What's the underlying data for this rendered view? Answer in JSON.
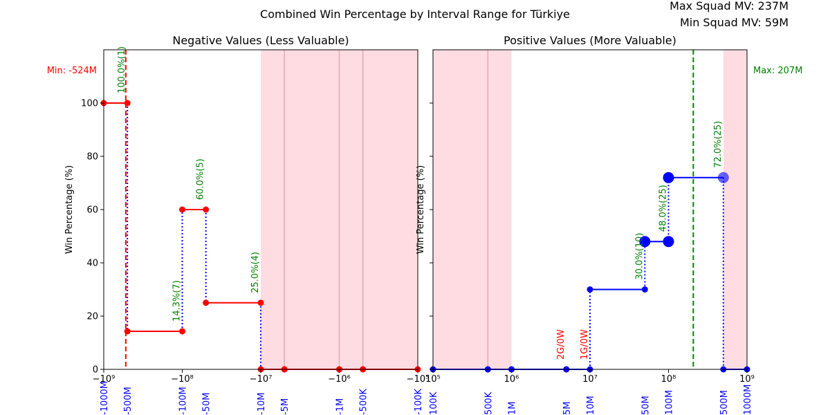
{
  "figure": {
    "title": "Combined Win Percentage by Interval Range for Türkiye",
    "max_squad_mv": "Max Squad MV: 237M",
    "min_squad_mv": "Min Squad MV: 59M"
  },
  "colors": {
    "negative_series": "#ff0000",
    "positive_series": "#0000ff",
    "connector": "#0000ff",
    "label_text": "#008000",
    "zero_win_text": "#ff0000",
    "shade": "#ffc0cb",
    "max_line": "#008000",
    "min_line": "#ff0000"
  },
  "chart_data": [
    {
      "type": "line",
      "title": "Negative Values (Less Valuable)",
      "xscale": "symlog",
      "xlim": [
        -1000000000,
        -100000
      ],
      "ylim": [
        0,
        120
      ],
      "ylabel": "Win Percentage (%)",
      "grid": false,
      "x_ticks": [
        {
          "value": -1000000000,
          "label": "−10⁹"
        },
        {
          "value": -100000000,
          "label": "−10⁸"
        },
        {
          "value": -10000000,
          "label": "−10⁷"
        },
        {
          "value": -1000000,
          "label": "−10⁶"
        },
        {
          "value": -100000,
          "label": "−10⁵"
        }
      ],
      "y_ticks": [
        0,
        20,
        40,
        60,
        80,
        100
      ],
      "interval_labels": [
        {
          "value": -1000000000,
          "label": "-1000M"
        },
        {
          "value": -500000000,
          "label": "-500M"
        },
        {
          "value": -100000000,
          "label": "-100M"
        },
        {
          "value": -50000000,
          "label": "-50M"
        },
        {
          "value": -10000000,
          "label": "-10M"
        },
        {
          "value": -5000000,
          "label": "-5M"
        },
        {
          "value": -1000000,
          "label": "-1M"
        },
        {
          "value": -500000,
          "label": "-500K"
        },
        {
          "value": -100000,
          "label": "-100K"
        }
      ],
      "segments": [
        {
          "x1": -1000000000,
          "x2": -500000000,
          "y": 100
        },
        {
          "x1": -500000000,
          "x2": -100000000,
          "y": 14.3
        },
        {
          "x1": -100000000,
          "x2": -50000000,
          "y": 60
        },
        {
          "x1": -50000000,
          "x2": -10000000,
          "y": 25
        },
        {
          "x1": -10000000,
          "x2": -5000000,
          "y": 0
        },
        {
          "x1": -5000000,
          "x2": -1000000,
          "y": 0
        },
        {
          "x1": -1000000,
          "x2": -500000,
          "y": 0
        },
        {
          "x1": -500000,
          "x2": -100000,
          "y": 0
        }
      ],
      "annotations": [
        {
          "x": -500000000,
          "y": 100,
          "text": "100.0%(1)",
          "color": "green"
        },
        {
          "x": -100000000,
          "y": 14.3,
          "text": "14.3%(7)",
          "color": "green"
        },
        {
          "x": -50000000,
          "y": 60,
          "text": "60.0%(5)",
          "color": "green"
        },
        {
          "x": -10000000,
          "y": 25,
          "text": "25.0%(4)",
          "color": "green"
        }
      ],
      "shaded_ranges": [
        [
          -10000000,
          -100000
        ]
      ],
      "reference_line": {
        "x": -524000000,
        "label": "Min: -524M",
        "style": "dashed"
      }
    },
    {
      "type": "line",
      "title": "Positive Values (More Valuable)",
      "xscale": "symlog",
      "xlim": [
        100000,
        1000000000
      ],
      "ylim": [
        0,
        120
      ],
      "ylabel": "Win Percentage (%)",
      "grid": false,
      "x_ticks": [
        {
          "value": 100000,
          "label": "10⁵"
        },
        {
          "value": 1000000,
          "label": "10⁶"
        },
        {
          "value": 10000000,
          "label": "10⁷"
        },
        {
          "value": 100000000,
          "label": "10⁸"
        },
        {
          "value": 1000000000,
          "label": "10⁹"
        }
      ],
      "interval_labels": [
        {
          "value": 100000,
          "label": "100K"
        },
        {
          "value": 500000,
          "label": "500K"
        },
        {
          "value": 1000000,
          "label": "1M"
        },
        {
          "value": 5000000,
          "label": "5M"
        },
        {
          "value": 10000000,
          "label": "10M"
        },
        {
          "value": 50000000,
          "label": "50M"
        },
        {
          "value": 100000000,
          "label": "100M"
        },
        {
          "value": 500000000,
          "label": "500M"
        },
        {
          "value": 1000000000,
          "label": "1000M"
        }
      ],
      "segments": [
        {
          "x1": 100000,
          "x2": 500000,
          "y": 0
        },
        {
          "x1": 500000,
          "x2": 1000000,
          "y": 0
        },
        {
          "x1": 1000000,
          "x2": 5000000,
          "y": 0
        },
        {
          "x1": 5000000,
          "x2": 10000000,
          "y": 0
        },
        {
          "x1": 10000000,
          "x2": 50000000,
          "y": 30
        },
        {
          "x1": 50000000,
          "x2": 100000000,
          "y": 48
        },
        {
          "x1": 100000000,
          "x2": 500000000,
          "y": 72
        },
        {
          "x1": 500000000,
          "x2": 1000000000,
          "y": 0
        }
      ],
      "annotations": [
        {
          "x": 50000000,
          "y": 30,
          "text": "30.0%(10)",
          "color": "green"
        },
        {
          "x": 100000000,
          "y": 48,
          "text": "48.0%(25)",
          "color": "green"
        },
        {
          "x": 500000000,
          "y": 72,
          "text": "72.0%(25)",
          "color": "green"
        },
        {
          "x": 5000000,
          "y": 0,
          "text": "2G/0W",
          "color": "red"
        },
        {
          "x": 10000000,
          "y": 0,
          "text": "1G/0W",
          "color": "red"
        }
      ],
      "shaded_ranges": [
        [
          100000,
          1000000
        ],
        [
          500000000,
          1000000000
        ]
      ],
      "reference_line": {
        "x": 207000000,
        "label": "Max: 207M",
        "style": "dashed"
      }
    }
  ]
}
